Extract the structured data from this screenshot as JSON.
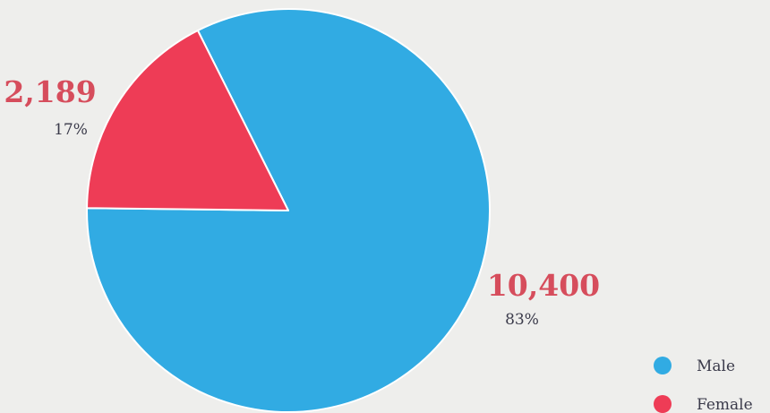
{
  "chart_data": {
    "type": "pie",
    "categories": [
      "Male",
      "Female"
    ],
    "values": [
      10400,
      2189
    ],
    "value_labels": [
      "10,400",
      "2,189"
    ],
    "percent_labels": [
      "83%",
      "17%"
    ],
    "colors": [
      "#31abe3",
      "#ee3c56"
    ],
    "label_color": "#d64d5c",
    "legend": {
      "placement": "bottom-right",
      "entries": [
        "Male",
        "Female"
      ]
    }
  }
}
